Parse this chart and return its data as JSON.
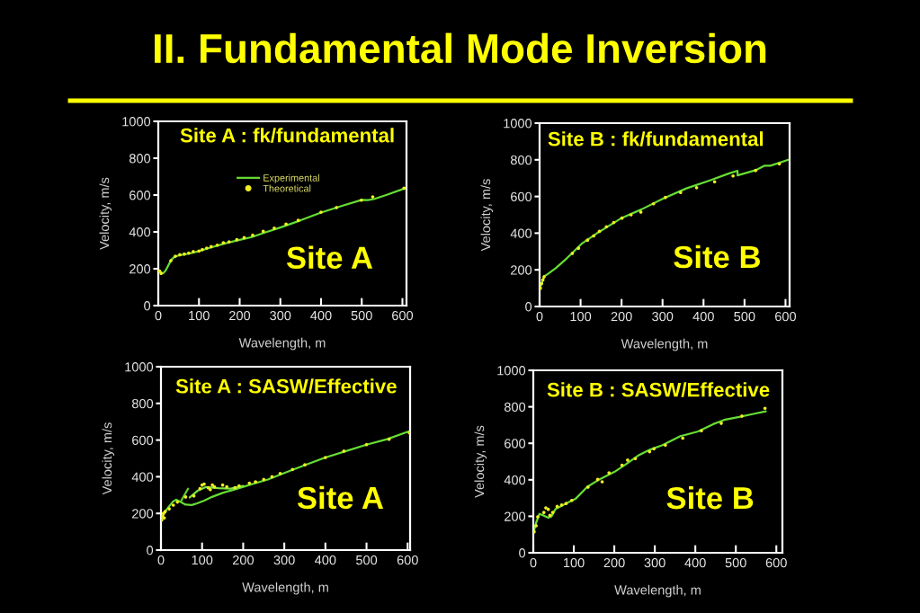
{
  "chart_data": [
    {
      "type": "line",
      "title": "II. Fundamental Mode Inversion",
      "subtitle": "Site A : fk/fundamental",
      "xlabel": "Wavelength, m",
      "ylabel": "Velocity, m/s",
      "xlim": [
        0,
        610
      ],
      "ylim": [
        0,
        1000
      ],
      "xticks": [
        0,
        100,
        200,
        300,
        400,
        500,
        600
      ],
      "yticks": [
        0,
        200,
        400,
        600,
        800,
        1000
      ],
      "legend": "top",
      "annotations": [
        "Site A"
      ],
      "series": [
        {
          "name": "Experimental",
          "color": "#66dd33",
          "x": [
            3,
            8,
            12,
            18,
            25,
            32,
            40,
            50,
            65,
            80,
            100,
            130,
            160,
            200,
            230,
            260,
            300,
            350,
            400,
            450,
            500,
            515,
            530,
            560,
            607
          ],
          "values": [
            190,
            178,
            175,
            190,
            220,
            248,
            265,
            272,
            278,
            284,
            296,
            316,
            335,
            357,
            372,
            395,
            424,
            463,
            505,
            540,
            574,
            573,
            578,
            600,
            637
          ]
        },
        {
          "name": "Theoretical",
          "type": "scatter",
          "marker": "circle",
          "color": "#eeee22",
          "x": [
            3,
            7,
            31,
            42,
            53,
            64,
            75,
            86,
            100,
            108,
            119,
            130,
            145,
            160,
            174,
            193,
            211,
            232,
            258,
            285,
            314,
            344,
            400,
            438,
            499,
            527,
            604
          ],
          "values": [
            187,
            175,
            244,
            268,
            276,
            280,
            285,
            293,
            296,
            304,
            312,
            320,
            328,
            341,
            346,
            358,
            369,
            382,
            403,
            420,
            442,
            463,
            507,
            532,
            572,
            590,
            637
          ]
        }
      ]
    },
    {
      "type": "line",
      "subtitle": "Site B : fk/fundamental",
      "xlabel": "Wavelength, m",
      "ylabel": "Velocity, m/s",
      "xlim": [
        0,
        610
      ],
      "ylim": [
        0,
        1000
      ],
      "xticks": [
        0,
        100,
        200,
        300,
        400,
        500,
        600
      ],
      "yticks": [
        0,
        200,
        400,
        600,
        800,
        1000
      ],
      "annotations": [
        "Site B"
      ],
      "series": [
        {
          "color": "#66dd33",
          "x": [
            0,
            11,
            20,
            40,
            66,
            102,
            139,
            198,
            249,
            300,
            358,
            417,
            461,
            483,
            483,
            527,
            549,
            563,
            607
          ],
          "values": [
            95,
            164,
            177,
            210,
            262,
            341,
            398,
            480,
            530,
            587,
            644,
            689,
            725,
            740,
            715,
            743,
            768,
            768,
            800
          ]
        },
        {
          "type": "scatter",
          "marker": "circle",
          "color": "#eeee22",
          "x": [
            2,
            5,
            8,
            11,
            80,
            95,
            117,
            132,
            146,
            163,
            181,
            201,
            223,
            247,
            278,
            307,
            344,
            383,
            427,
            472,
            527,
            585
          ],
          "values": [
            100,
            125,
            145,
            162,
            290,
            318,
            362,
            385,
            410,
            435,
            458,
            482,
            500,
            515,
            560,
            595,
            622,
            648,
            680,
            712,
            742,
            778
          ]
        }
      ]
    },
    {
      "type": "line",
      "subtitle": "Site A : SASW/Effective",
      "xlabel": "Wavelength, m",
      "ylabel": "Velocity, m/s",
      "xlim": [
        0,
        606
      ],
      "ylim": [
        0,
        1000
      ],
      "xticks": [
        0,
        100,
        200,
        300,
        400,
        500,
        600
      ],
      "yticks": [
        0,
        200,
        400,
        600,
        800,
        1000
      ],
      "annotations": [
        "Site A"
      ],
      "series": [
        {
          "color": "#66dd33",
          "x": [
            0,
            4,
            15,
            29,
            37,
            48,
            60,
            75,
            88,
            105,
            124,
            150,
            175,
            200,
            230,
            260,
            300,
            350,
            400,
            450,
            500,
            550,
            604
          ],
          "values": [
            165,
            185,
            225,
            264,
            275,
            262,
            248,
            246,
            255,
            270,
            290,
            312,
            328,
            345,
            365,
            385,
            420,
            463,
            505,
            540,
            575,
            605,
            648
          ]
        },
        {
          "color": "#5ccc2c",
          "x": [
            48,
            57,
            66
          ],
          "values": [
            264,
            300,
            335
          ]
        },
        {
          "color": "#78e440",
          "x": [
            70,
            90,
            110,
            140,
            170,
            200
          ],
          "values": [
            287,
            325,
            344,
            338,
            335,
            350
          ]
        },
        {
          "type": "scatter",
          "marker": "circle",
          "color": "#eeee22",
          "x": [
            2,
            4,
            6,
            8,
            10,
            20,
            30,
            40,
            60,
            80,
            95,
            100,
            105,
            115,
            120,
            125,
            130,
            150,
            160,
            180,
            190,
            215,
            230,
            250,
            270,
            290,
            320,
            350,
            400,
            445,
            500,
            555,
            604
          ],
          "values": [
            165,
            185,
            200,
            175,
            210,
            225,
            245,
            262,
            290,
            295,
            335,
            355,
            360,
            340,
            330,
            355,
            345,
            355,
            345,
            340,
            350,
            365,
            372,
            385,
            400,
            418,
            440,
            465,
            505,
            540,
            575,
            605,
            640
          ]
        }
      ]
    },
    {
      "type": "line",
      "subtitle": "Site B : SASW/Effective",
      "xlabel": "Wavelength, m",
      "ylabel": "Velocity, m/s",
      "xlim": [
        0,
        615
      ],
      "ylim": [
        0,
        1000
      ],
      "xticks": [
        0,
        100,
        200,
        300,
        400,
        500,
        600
      ],
      "yticks": [
        0,
        200,
        400,
        600,
        800,
        1000
      ],
      "annotations": [
        "Site B"
      ],
      "series": [
        {
          "color": "#66dd33",
          "x": [
            0,
            7,
            15,
            25,
            37,
            45,
            55,
            67,
            80,
            104,
            133,
            163,
            200,
            230,
            259,
            289,
            319,
            363,
            407,
            444,
            474,
            511,
            541,
            574
          ],
          "values": [
            107,
            165,
            213,
            205,
            192,
            200,
            240,
            254,
            270,
            295,
            361,
            402,
            443,
            487,
            533,
            566,
            590,
            639,
            665,
            705,
            730,
            746,
            760,
            775
          ]
        },
        {
          "type": "scatter",
          "marker": "circle",
          "color": "#eeee22",
          "x": [
            2,
            7,
            11,
            26,
            31,
            37,
            41,
            48,
            59,
            70,
            81,
            95,
            135,
            159,
            170,
            187,
            219,
            233,
            252,
            287,
            298,
            326,
            369,
            415,
            464,
            515,
            572
          ],
          "values": [
            115,
            148,
            197,
            221,
            246,
            238,
            205,
            221,
            254,
            262,
            270,
            287,
            360,
            402,
            389,
            438,
            480,
            508,
            516,
            554,
            570,
            590,
            628,
            669,
            710,
            749,
            792
          ]
        }
      ]
    }
  ]
}
